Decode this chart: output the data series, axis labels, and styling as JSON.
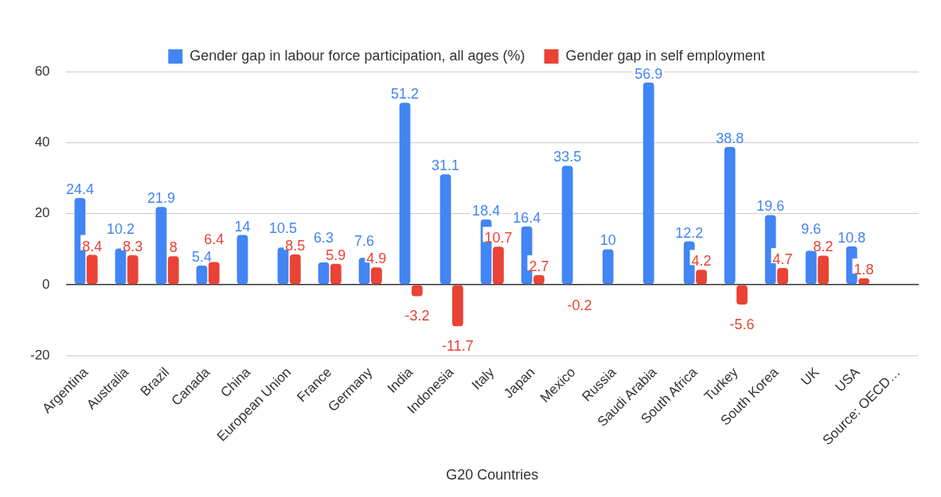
{
  "chart_data": {
    "type": "bar",
    "xlabel": "G20 Countries",
    "categories": [
      "Argentina",
      "Australia",
      "Brazil",
      "Canada",
      "China",
      "European Union",
      "France",
      "Germany",
      "India",
      "Indonesia",
      "Italy",
      "Japan",
      "Mexico",
      "Russia",
      "Saudi Arabia",
      "South Africa",
      "Turkey",
      "South Korea",
      "UK",
      "USA",
      "Source: OECD…"
    ],
    "series": [
      {
        "name": "Gender gap in labour force participation, all ages (%)",
        "color": "#4285f4",
        "values": [
          24.4,
          10.2,
          21.9,
          5.4,
          14,
          10.5,
          6.3,
          7.6,
          51.2,
          31.1,
          18.4,
          16.4,
          33.5,
          10,
          56.9,
          12.2,
          38.8,
          19.6,
          9.6,
          10.8,
          null
        ]
      },
      {
        "name": "Gender gap in self employment",
        "color": "#ea4335",
        "values": [
          8.4,
          8.3,
          8,
          6.4,
          null,
          8.5,
          5.9,
          4.9,
          -3.2,
          -11.7,
          10.7,
          2.7,
          -0.2,
          null,
          null,
          4.2,
          -5.6,
          4.7,
          8.2,
          1.8,
          null
        ]
      }
    ],
    "ylim": [
      -20,
      60
    ],
    "yticks": [
      -20,
      0,
      20,
      40,
      60
    ],
    "grid": "y",
    "legend": "top",
    "data_labels": true
  }
}
